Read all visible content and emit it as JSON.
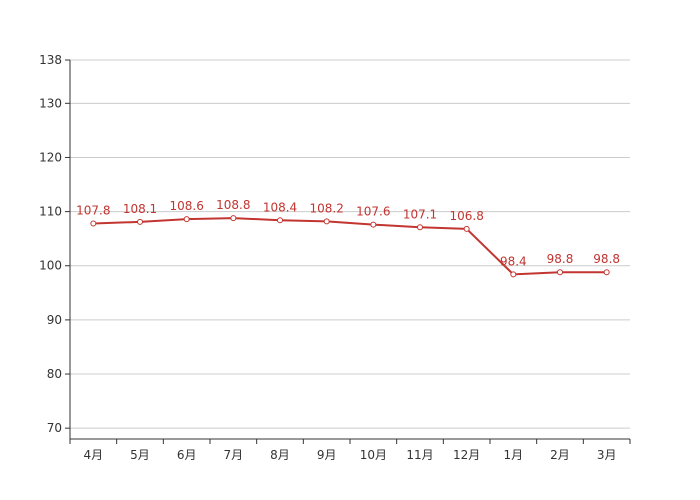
{
  "chart_data": {
    "type": "line",
    "title": "",
    "xlabel": "",
    "ylabel": "",
    "categories": [
      "4月",
      "5月",
      "6月",
      "7月",
      "8月",
      "9月",
      "10月",
      "11月",
      "12月",
      "1月",
      "2月",
      "3月"
    ],
    "series": [
      {
        "values": [
          107.8,
          108.1,
          108.6,
          108.8,
          108.4,
          108.2,
          107.6,
          107.1,
          106.8,
          98.4,
          98.8,
          98.8
        ],
        "labels": [
          "107.8",
          "108.1",
          "108.6",
          "108.8",
          "108.4",
          "108.2",
          "107.6",
          "107.1",
          "106.8",
          "98.4",
          "98.8",
          "98.8"
        ]
      }
    ],
    "yticks": [
      70,
      80,
      90,
      100,
      110,
      120,
      130,
      138
    ],
    "ytick_labels": [
      "70",
      "80",
      "90",
      "100",
      "110",
      "120",
      "130",
      "138"
    ],
    "ylim": [
      68,
      138
    ],
    "grid": true,
    "legend": "none",
    "colors": {
      "line": "#c23531",
      "grid": "#cccccc",
      "axis": "#333333",
      "text": "#333333"
    }
  }
}
